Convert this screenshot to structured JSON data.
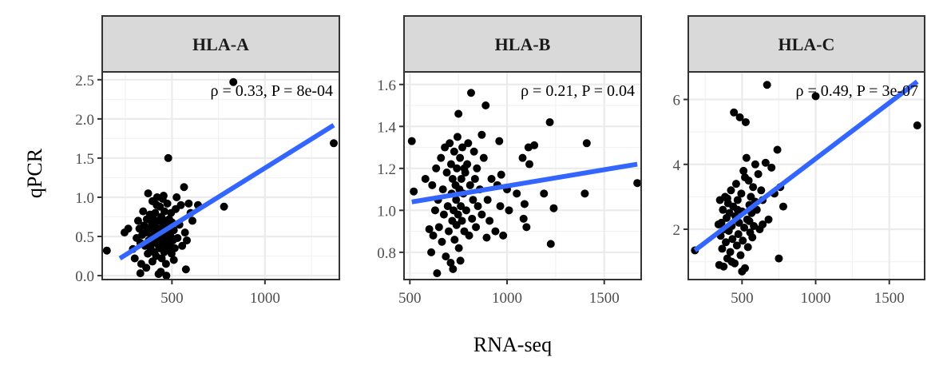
{
  "chart_data": {
    "type": "scatter",
    "xlabel": "RNA-seq",
    "ylabel": "qPCR",
    "grid": true,
    "fit_line_color": "#3366ff",
    "point_color": "#000000",
    "strip_fill": "#d9d9d9",
    "panels": [
      {
        "title": "HLA-A",
        "annotation": "ρ = 0.33,  P = 8e-04",
        "xlim": [
          125,
          1400
        ],
        "ylim": [
          -0.05,
          2.6
        ],
        "xticks": [
          500,
          1000
        ],
        "xtick_labels": [
          "500",
          "1000"
        ],
        "yticks": [
          0.0,
          0.5,
          1.0,
          1.5,
          2.0,
          2.5
        ],
        "ytick_labels": [
          "0.0",
          "0.5",
          "1.0",
          "1.5",
          "2.0",
          "2.5"
        ],
        "fit": {
          "x": [
            220,
            1370
          ],
          "y": [
            0.22,
            1.92
          ]
        },
        "points": [
          [
            150,
            0.32
          ],
          [
            245,
            0.55
          ],
          [
            265,
            0.6
          ],
          [
            290,
            0.34
          ],
          [
            300,
            0.22
          ],
          [
            310,
            0.48
          ],
          [
            318,
            0.7
          ],
          [
            325,
            0.6
          ],
          [
            330,
            0.42
          ],
          [
            335,
            0.15
          ],
          [
            340,
            0.52
          ],
          [
            345,
            0.82
          ],
          [
            350,
            0.64
          ],
          [
            355,
            0.38
          ],
          [
            360,
            0.55
          ],
          [
            365,
            0.72
          ],
          [
            370,
            0.28
          ],
          [
            372,
            1.05
          ],
          [
            375,
            0.45
          ],
          [
            380,
            0.6
          ],
          [
            382,
            0.78
          ],
          [
            385,
            0.35
          ],
          [
            390,
            0.5
          ],
          [
            392,
            0.66
          ],
          [
            395,
            0.95
          ],
          [
            398,
            0.42
          ],
          [
            400,
            0.72
          ],
          [
            403,
            0.58
          ],
          [
            405,
            0.3
          ],
          [
            408,
            0.48
          ],
          [
            410,
            0.8
          ],
          [
            412,
            0.62
          ],
          [
            415,
            0.25
          ],
          [
            418,
            0.9
          ],
          [
            420,
            0.55
          ],
          [
            423,
            0.4
          ],
          [
            425,
            0.7
          ],
          [
            428,
            0.02
          ],
          [
            430,
            0.5
          ],
          [
            432,
            0.35
          ],
          [
            435,
            0.88
          ],
          [
            438,
            0.6
          ],
          [
            440,
            0.45
          ],
          [
            443,
            0.75
          ],
          [
            445,
            0.22
          ],
          [
            448,
            0.55
          ],
          [
            450,
            0.98
          ],
          [
            453,
            0.65
          ],
          [
            455,
            0.4
          ],
          [
            458,
            0.3
          ],
          [
            460,
            0.82
          ],
          [
            463,
            0.5
          ],
          [
            465,
            0.7
          ],
          [
            468,
            0.15
          ],
          [
            470,
            0.6
          ],
          [
            473,
            0.45
          ],
          [
            475,
            0.92
          ],
          [
            478,
            0.35
          ],
          [
            480,
            1.5
          ],
          [
            483,
            0.55
          ],
          [
            485,
            0.72
          ],
          [
            488,
            0.4
          ],
          [
            490,
            0.62
          ],
          [
            493,
            0.5
          ],
          [
            495,
            0.8
          ],
          [
            498,
            0.28
          ],
          [
            500,
            0.68
          ],
          [
            505,
            0.45
          ],
          [
            510,
            0.58
          ],
          [
            515,
            0.35
          ],
          [
            520,
            0.85
          ],
          [
            525,
            1.0
          ],
          [
            530,
            0.48
          ],
          [
            540,
            0.65
          ],
          [
            548,
            0.9
          ],
          [
            555,
            0.38
          ],
          [
            565,
            1.13
          ],
          [
            570,
            0.55
          ],
          [
            575,
            0.08
          ],
          [
            580,
            0.45
          ],
          [
            590,
            0.92
          ],
          [
            600,
            0.8
          ],
          [
            610,
            0.7
          ],
          [
            640,
            0.9
          ],
          [
            780,
            0.88
          ],
          [
            830,
            2.47
          ],
          [
            1370,
            1.69
          ],
          [
            330,
            0.03
          ],
          [
            362,
            0.1
          ],
          [
            440,
            0.05
          ],
          [
            470,
            0.0
          ],
          [
            395,
            0.18
          ],
          [
            420,
            1.0
          ],
          [
            455,
            1.02
          ],
          [
            510,
            0.2
          ]
        ]
      },
      {
        "title": "HLA-B",
        "annotation": "ρ = 0.21,  P = 0.04",
        "xlim": [
          470,
          1690
        ],
        "ylim": [
          0.67,
          1.66
        ],
        "xticks": [
          500,
          1000,
          1500
        ],
        "xtick_labels": [
          "500",
          "1000",
          "1500"
        ],
        "yticks": [
          0.8,
          1.0,
          1.2,
          1.4,
          1.6
        ],
        "ytick_labels": [
          "0.8",
          "1.0",
          "1.2",
          "1.4",
          "1.6"
        ],
        "fit": {
          "x": [
            510,
            1670
          ],
          "y": [
            1.04,
            1.22
          ]
        },
        "points": [
          [
            510,
            1.33
          ],
          [
            520,
            1.09
          ],
          [
            580,
            1.15
          ],
          [
            600,
            0.91
          ],
          [
            610,
            0.8
          ],
          [
            615,
            1.12
          ],
          [
            620,
            0.88
          ],
          [
            630,
            1.0
          ],
          [
            635,
            1.2
          ],
          [
            640,
            0.7
          ],
          [
            645,
            1.05
          ],
          [
            650,
            0.92
          ],
          [
            660,
            1.25
          ],
          [
            665,
            0.85
          ],
          [
            670,
            1.1
          ],
          [
            675,
            0.98
          ],
          [
            680,
            1.3
          ],
          [
            685,
            0.78
          ],
          [
            690,
            1.18
          ],
          [
            695,
            1.02
          ],
          [
            700,
            0.9
          ],
          [
            705,
            1.32
          ],
          [
            710,
            0.75
          ],
          [
            712,
            1.22
          ],
          [
            715,
            1.08
          ],
          [
            718,
            0.95
          ],
          [
            720,
            1.15
          ],
          [
            722,
            0.72
          ],
          [
            725,
            1.0
          ],
          [
            728,
            1.28
          ],
          [
            730,
            0.86
          ],
          [
            735,
            1.12
          ],
          [
            738,
            1.05
          ],
          [
            740,
            0.93
          ],
          [
            742,
            1.2
          ],
          [
            745,
            1.35
          ],
          [
            748,
            0.98
          ],
          [
            750,
            1.46
          ],
          [
            752,
            0.82
          ],
          [
            755,
            1.1
          ],
          [
            758,
            1.25
          ],
          [
            760,
            0.76
          ],
          [
            762,
            1.02
          ],
          [
            765,
            1.15
          ],
          [
            768,
            0.95
          ],
          [
            770,
            1.3
          ],
          [
            775,
            1.08
          ],
          [
            780,
            0.9
          ],
          [
            785,
            1.18
          ],
          [
            790,
            1.0
          ],
          [
            795,
            1.22
          ],
          [
            800,
            1.32
          ],
          [
            805,
            0.88
          ],
          [
            810,
            1.12
          ],
          [
            815,
            1.56
          ],
          [
            820,
            0.96
          ],
          [
            825,
            1.05
          ],
          [
            830,
            1.28
          ],
          [
            835,
            1.15
          ],
          [
            840,
            0.92
          ],
          [
            845,
            1.2
          ],
          [
            850,
            1.02
          ],
          [
            860,
            1.1
          ],
          [
            870,
            0.98
          ],
          [
            880,
            1.25
          ],
          [
            890,
            1.5
          ],
          [
            895,
            0.87
          ],
          [
            900,
            1.05
          ],
          [
            910,
            0.95
          ],
          [
            920,
            1.15
          ],
          [
            940,
            0.9
          ],
          [
            950,
            1.12
          ],
          [
            960,
            1.33
          ],
          [
            965,
            1.02
          ],
          [
            970,
            1.17
          ],
          [
            980,
            0.88
          ],
          [
            1000,
            1.1
          ],
          [
            1010,
            1.0
          ],
          [
            1050,
            1.08
          ],
          [
            1080,
            1.25
          ],
          [
            1085,
            0.96
          ],
          [
            1090,
            1.03
          ],
          [
            1100,
            0.92
          ],
          [
            1110,
            1.3
          ],
          [
            1115,
            1.22
          ],
          [
            1140,
            1.31
          ],
          [
            1190,
            1.08
          ],
          [
            1220,
            1.42
          ],
          [
            1225,
            0.84
          ],
          [
            1240,
            1.01
          ],
          [
            1400,
            1.08
          ],
          [
            1410,
            1.32
          ],
          [
            1670,
            1.13
          ],
          [
            780,
            1.2
          ],
          [
            870,
            1.36
          ]
        ]
      },
      {
        "title": "HLA-C",
        "annotation": "ρ = 0.49,  P = 3e-07",
        "xlim": [
          135,
          1740
        ],
        "ylim": [
          0.45,
          6.85
        ],
        "xticks": [
          500,
          1000,
          1500
        ],
        "xtick_labels": [
          "500",
          "1000",
          "1500"
        ],
        "yticks": [
          2,
          4,
          6
        ],
        "ytick_labels": [
          "2",
          "4",
          "6"
        ],
        "fit": {
          "x": [
            180,
            1690
          ],
          "y": [
            1.35,
            6.55
          ]
        },
        "points": [
          [
            180,
            1.35
          ],
          [
            340,
            2.15
          ],
          [
            345,
            0.9
          ],
          [
            350,
            2.9
          ],
          [
            355,
            1.8
          ],
          [
            360,
            2.2
          ],
          [
            365,
            1.4
          ],
          [
            370,
            2.6
          ],
          [
            375,
            0.85
          ],
          [
            380,
            2.0
          ],
          [
            385,
            3.0
          ],
          [
            390,
            1.6
          ],
          [
            395,
            2.35
          ],
          [
            400,
            1.1
          ],
          [
            405,
            2.8
          ],
          [
            410,
            1.95
          ],
          [
            415,
            2.5
          ],
          [
            420,
            1.3
          ],
          [
            425,
            3.2
          ],
          [
            430,
            2.1
          ],
          [
            435,
            1.7
          ],
          [
            440,
            2.7
          ],
          [
            445,
            5.6
          ],
          [
            450,
            0.95
          ],
          [
            455,
            2.4
          ],
          [
            460,
            3.4
          ],
          [
            465,
            1.5
          ],
          [
            470,
            2.9
          ],
          [
            475,
            1.85
          ],
          [
            480,
            2.2
          ],
          [
            485,
            5.45
          ],
          [
            490,
            1.2
          ],
          [
            495,
            3.1
          ],
          [
            500,
            2.55
          ],
          [
            505,
            1.65
          ],
          [
            510,
            3.8
          ],
          [
            515,
            2.05
          ],
          [
            520,
            0.8
          ],
          [
            525,
            5.3
          ],
          [
            530,
            4.2
          ],
          [
            535,
            2.3
          ],
          [
            540,
            1.45
          ],
          [
            545,
            3.5
          ],
          [
            550,
            2.75
          ],
          [
            555,
            1.9
          ],
          [
            560,
            3.0
          ],
          [
            565,
            2.5
          ],
          [
            570,
            1.75
          ],
          [
            575,
            3.3
          ],
          [
            580,
            2.1
          ],
          [
            590,
            4.0
          ],
          [
            600,
            2.6
          ],
          [
            610,
            3.7
          ],
          [
            620,
            2.0
          ],
          [
            630,
            3.2
          ],
          [
            640,
            2.9
          ],
          [
            660,
            4.05
          ],
          [
            670,
            6.45
          ],
          [
            680,
            2.3
          ],
          [
            700,
            3.9
          ],
          [
            720,
            3.1
          ],
          [
            740,
            4.45
          ],
          [
            750,
            1.1
          ],
          [
            760,
            3.3
          ],
          [
            780,
            2.7
          ],
          [
            1000,
            6.1
          ],
          [
            1690,
            5.2
          ],
          [
            400,
            2.95
          ],
          [
            430,
            1.0
          ],
          [
            470,
            2.6
          ],
          [
            520,
            3.6
          ],
          [
            550,
            2.25
          ],
          [
            590,
            2.85
          ],
          [
            640,
            2.15
          ],
          [
            500,
            0.7
          ]
        ]
      }
    ]
  }
}
